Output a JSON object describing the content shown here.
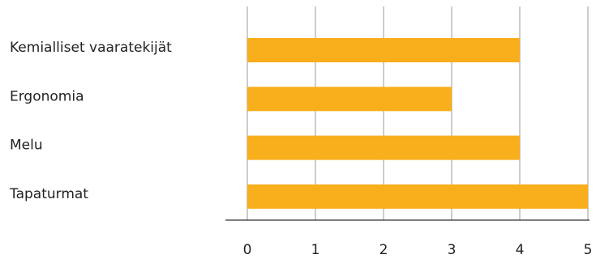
{
  "chart_data": {
    "type": "bar",
    "orientation": "horizontal",
    "categories": [
      "Kemialliset vaaratekijät",
      "Ergonomia",
      "Melu",
      "Tapaturmat"
    ],
    "values": [
      4,
      3,
      4,
      5
    ],
    "title": "",
    "xlabel": "",
    "ylabel": "",
    "xlim": [
      0,
      5
    ],
    "xticks": [
      "0",
      "1",
      "2",
      "3",
      "4",
      "5"
    ],
    "grid": "vertical",
    "legend": "none",
    "bar_color": "#F9AE1B",
    "grid_color": "#9a9a9a",
    "axis_color": "#333333"
  }
}
